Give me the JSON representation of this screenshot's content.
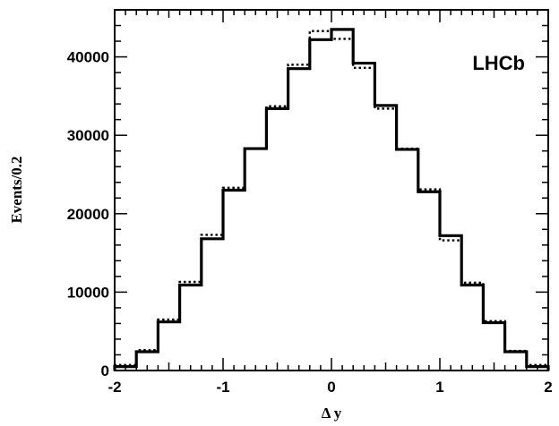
{
  "chart_data": {
    "type": "histogram",
    "xlabel": "Δ y",
    "ylabel": "Events/0.2",
    "annotation": "LHCb",
    "xlim": [
      -2,
      2
    ],
    "ylim": [
      0,
      46000
    ],
    "bin_width": 0.2,
    "x_ticks": [
      -2,
      -1,
      0,
      1,
      2
    ],
    "x_tick_labels": [
      "-2",
      "-1",
      "0",
      "1",
      "2"
    ],
    "y_ticks": [
      0,
      10000,
      20000,
      30000,
      40000
    ],
    "y_tick_labels": [
      "0",
      "10000",
      "20000",
      "30000",
      "40000"
    ],
    "bin_edges": [
      -2.0,
      -1.8,
      -1.6,
      -1.4,
      -1.2,
      -1.0,
      -0.8,
      -0.6,
      -0.4,
      -0.2,
      0.0,
      0.2,
      0.4,
      0.6,
      0.8,
      1.0,
      1.2,
      1.4,
      1.6,
      1.8,
      2.0
    ],
    "series": [
      {
        "style": "solid",
        "values": [
          500,
          2400,
          6200,
          10900,
          16800,
          23000,
          28300,
          33400,
          38500,
          42200,
          43500,
          39200,
          33800,
          28200,
          22800,
          17200,
          10900,
          6100,
          2400,
          500
        ]
      },
      {
        "style": "dotted",
        "values": [
          700,
          2600,
          6500,
          11300,
          17300,
          23300,
          28300,
          33700,
          39000,
          43300,
          42300,
          38600,
          33400,
          28300,
          23100,
          16600,
          11200,
          6300,
          2500,
          700
        ]
      }
    ]
  }
}
